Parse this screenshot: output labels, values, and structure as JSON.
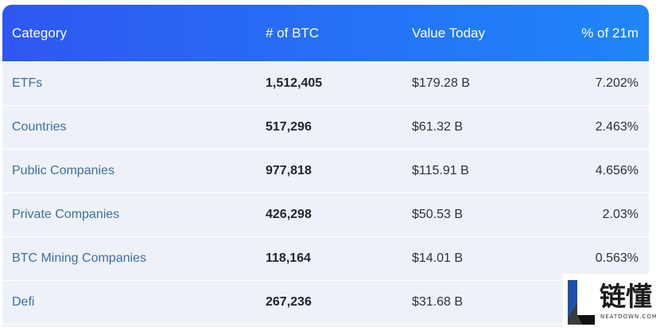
{
  "table": {
    "headers": {
      "category": "Category",
      "btc": "# of BTC",
      "value": "Value Today",
      "pct": "% of 21m"
    },
    "rows": [
      {
        "category": "ETFs",
        "btc": "1,512,405",
        "value": "$179.28 B",
        "pct": "7.202%"
      },
      {
        "category": "Countries",
        "btc": "517,296",
        "value": "$61.32 B",
        "pct": "2.463%"
      },
      {
        "category": "Public Companies",
        "btc": "977,818",
        "value": "$115.91 B",
        "pct": "4.656%"
      },
      {
        "category": "Private Companies",
        "btc": "426,298",
        "value": "$50.53 B",
        "pct": "2.03%"
      },
      {
        "category": "BTC Mining Companies",
        "btc": "118,164",
        "value": "$14.01 B",
        "pct": "0.563%"
      },
      {
        "category": "Defi",
        "btc": "267,236",
        "value": "$31.68 B",
        "pct": ""
      }
    ]
  },
  "watermark": {
    "text": "链懂",
    "subtext": "NEATDOWN.COM"
  },
  "colors": {
    "header_gradient_start": "#2f57f0",
    "header_gradient_end": "#1f86f8",
    "row_background": "#eef2f8",
    "category_text": "#3e6f98"
  }
}
